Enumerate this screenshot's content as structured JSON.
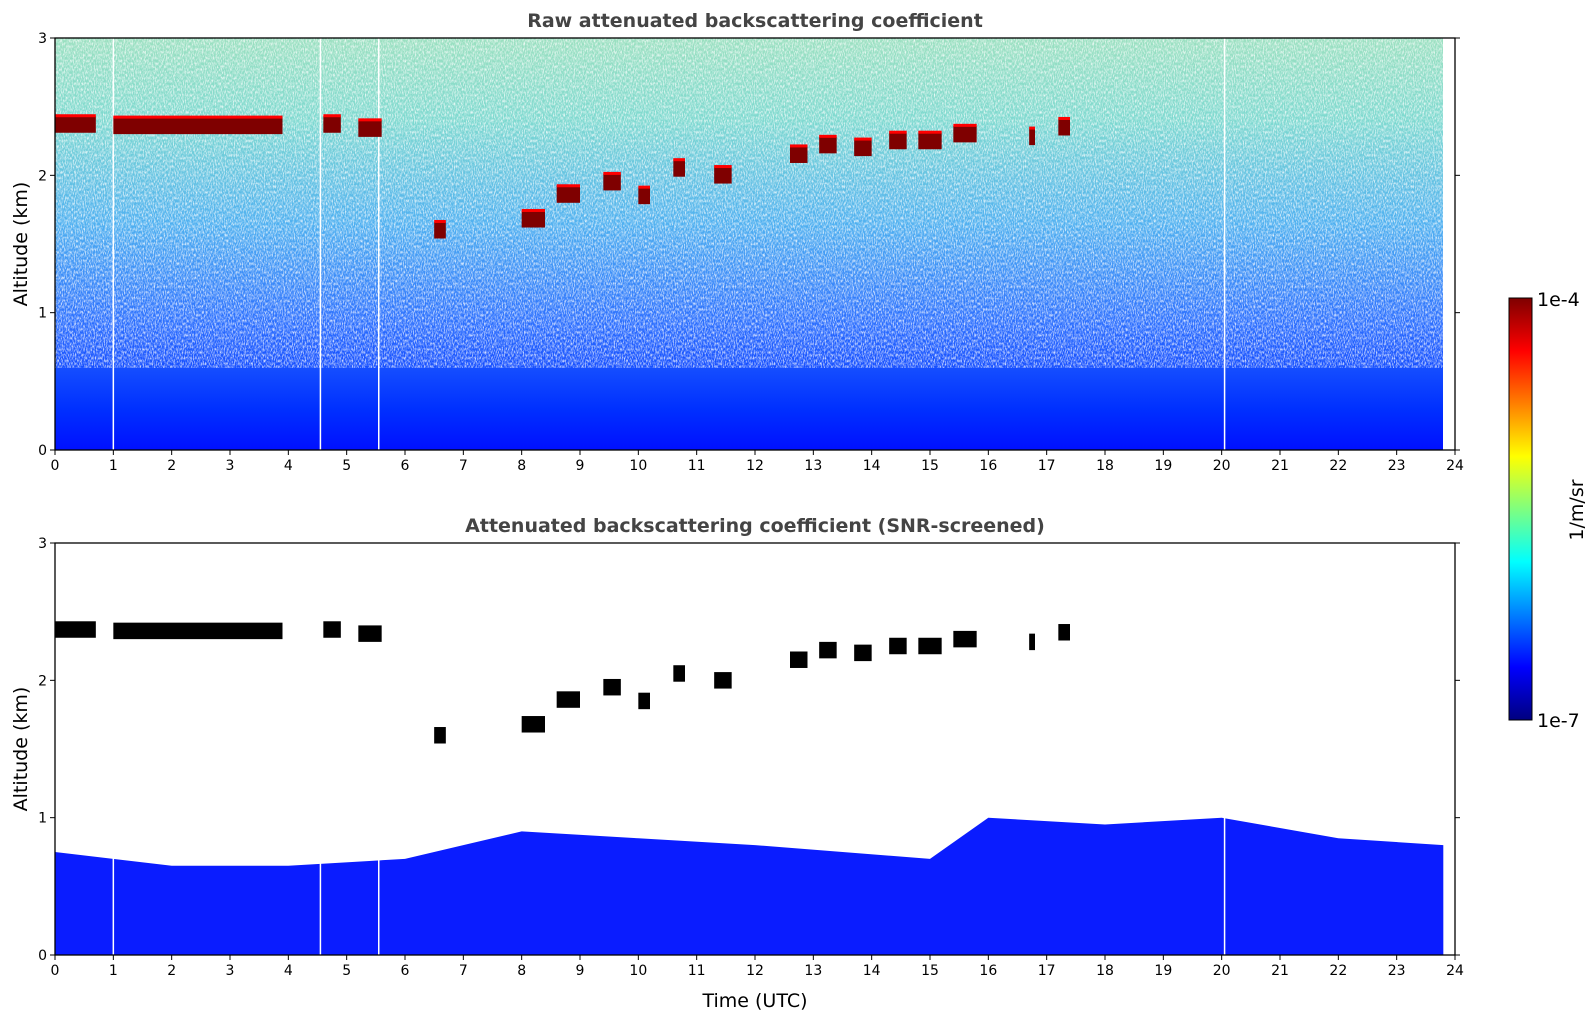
{
  "colors": {
    "jet_stops": [
      "#00007f",
      "#0000ff",
      "#007fff",
      "#00ffff",
      "#7fff7f",
      "#ffff00",
      "#ff7f00",
      "#ff0000",
      "#7f0000"
    ],
    "cloud_saturated": "#000000",
    "axis": "#000000",
    "title": "#444444"
  },
  "chart_data": [
    {
      "type": "heatmap",
      "title": "Raw attenuated backscattering coefficient",
      "xlabel": "",
      "ylabel": "Altitude (km)",
      "xlim": [
        0,
        24
      ],
      "ylim": [
        0,
        3
      ],
      "xticks": [
        "0",
        "1",
        "2",
        "3",
        "4",
        "5",
        "6",
        "7",
        "8",
        "9",
        "10",
        "11",
        "12",
        "13",
        "14",
        "15",
        "16",
        "17",
        "18",
        "19",
        "20",
        "21",
        "22",
        "23",
        "24"
      ],
      "yticks": [
        "0",
        "1",
        "2",
        "3"
      ],
      "data_extent_hours": [
        0,
        23.8
      ],
      "cloud_layer": [
        {
          "t0": 0.0,
          "t1": 0.7,
          "alt": 2.37
        },
        {
          "t0": 1.0,
          "t1": 3.9,
          "alt": 2.36
        },
        {
          "t0": 4.6,
          "t1": 4.9,
          "alt": 2.37
        },
        {
          "t0": 5.2,
          "t1": 5.6,
          "alt": 2.34
        },
        {
          "t0": 6.5,
          "t1": 6.7,
          "alt": 1.6
        },
        {
          "t0": 8.0,
          "t1": 8.4,
          "alt": 1.68
        },
        {
          "t0": 8.6,
          "t1": 9.0,
          "alt": 1.86
        },
        {
          "t0": 9.4,
          "t1": 9.7,
          "alt": 1.95
        },
        {
          "t0": 10.0,
          "t1": 10.2,
          "alt": 1.85
        },
        {
          "t0": 10.6,
          "t1": 10.8,
          "alt": 2.05
        },
        {
          "t0": 11.3,
          "t1": 11.6,
          "alt": 2.0
        },
        {
          "t0": 12.6,
          "t1": 12.9,
          "alt": 2.15
        },
        {
          "t0": 13.1,
          "t1": 13.4,
          "alt": 2.22
        },
        {
          "t0": 13.7,
          "t1": 14.0,
          "alt": 2.2
        },
        {
          "t0": 14.3,
          "t1": 14.6,
          "alt": 2.25
        },
        {
          "t0": 14.8,
          "t1": 15.2,
          "alt": 2.25
        },
        {
          "t0": 15.4,
          "t1": 15.8,
          "alt": 2.3
        },
        {
          "t0": 16.7,
          "t1": 16.8,
          "alt": 2.28
        },
        {
          "t0": 17.2,
          "t1": 17.4,
          "alt": 2.35
        }
      ],
      "data_gaps": [
        1.0,
        4.55,
        5.55,
        20.05
      ]
    },
    {
      "type": "heatmap",
      "title": "Attenuated backscattering coefficient (SNR-screened)",
      "xlabel": "Time (UTC)",
      "ylabel": "Altitude (km)",
      "xlim": [
        0,
        24
      ],
      "ylim": [
        0,
        3
      ],
      "xticks": [
        "0",
        "1",
        "2",
        "3",
        "4",
        "5",
        "6",
        "7",
        "8",
        "9",
        "10",
        "11",
        "12",
        "13",
        "14",
        "15",
        "16",
        "17",
        "18",
        "19",
        "20",
        "21",
        "22",
        "23",
        "24"
      ],
      "yticks": [
        "0",
        "1",
        "2",
        "3"
      ],
      "data_extent_hours": [
        0,
        23.8
      ],
      "boundary_layer_top": [
        {
          "t": 0,
          "alt": 0.75
        },
        {
          "t": 2,
          "alt": 0.65
        },
        {
          "t": 4,
          "alt": 0.65
        },
        {
          "t": 6,
          "alt": 0.7
        },
        {
          "t": 7,
          "alt": 0.8
        },
        {
          "t": 8,
          "alt": 0.9
        },
        {
          "t": 10,
          "alt": 0.85
        },
        {
          "t": 12,
          "alt": 0.8
        },
        {
          "t": 15,
          "alt": 0.7
        },
        {
          "t": 16,
          "alt": 1.0
        },
        {
          "t": 18,
          "alt": 0.95
        },
        {
          "t": 20,
          "alt": 1.0
        },
        {
          "t": 22,
          "alt": 0.85
        },
        {
          "t": 23.8,
          "alt": 0.8
        }
      ]
    }
  ],
  "colorbar": {
    "label": "1/m/sr",
    "max_label": "1e-4",
    "min_label": "1e-7"
  }
}
